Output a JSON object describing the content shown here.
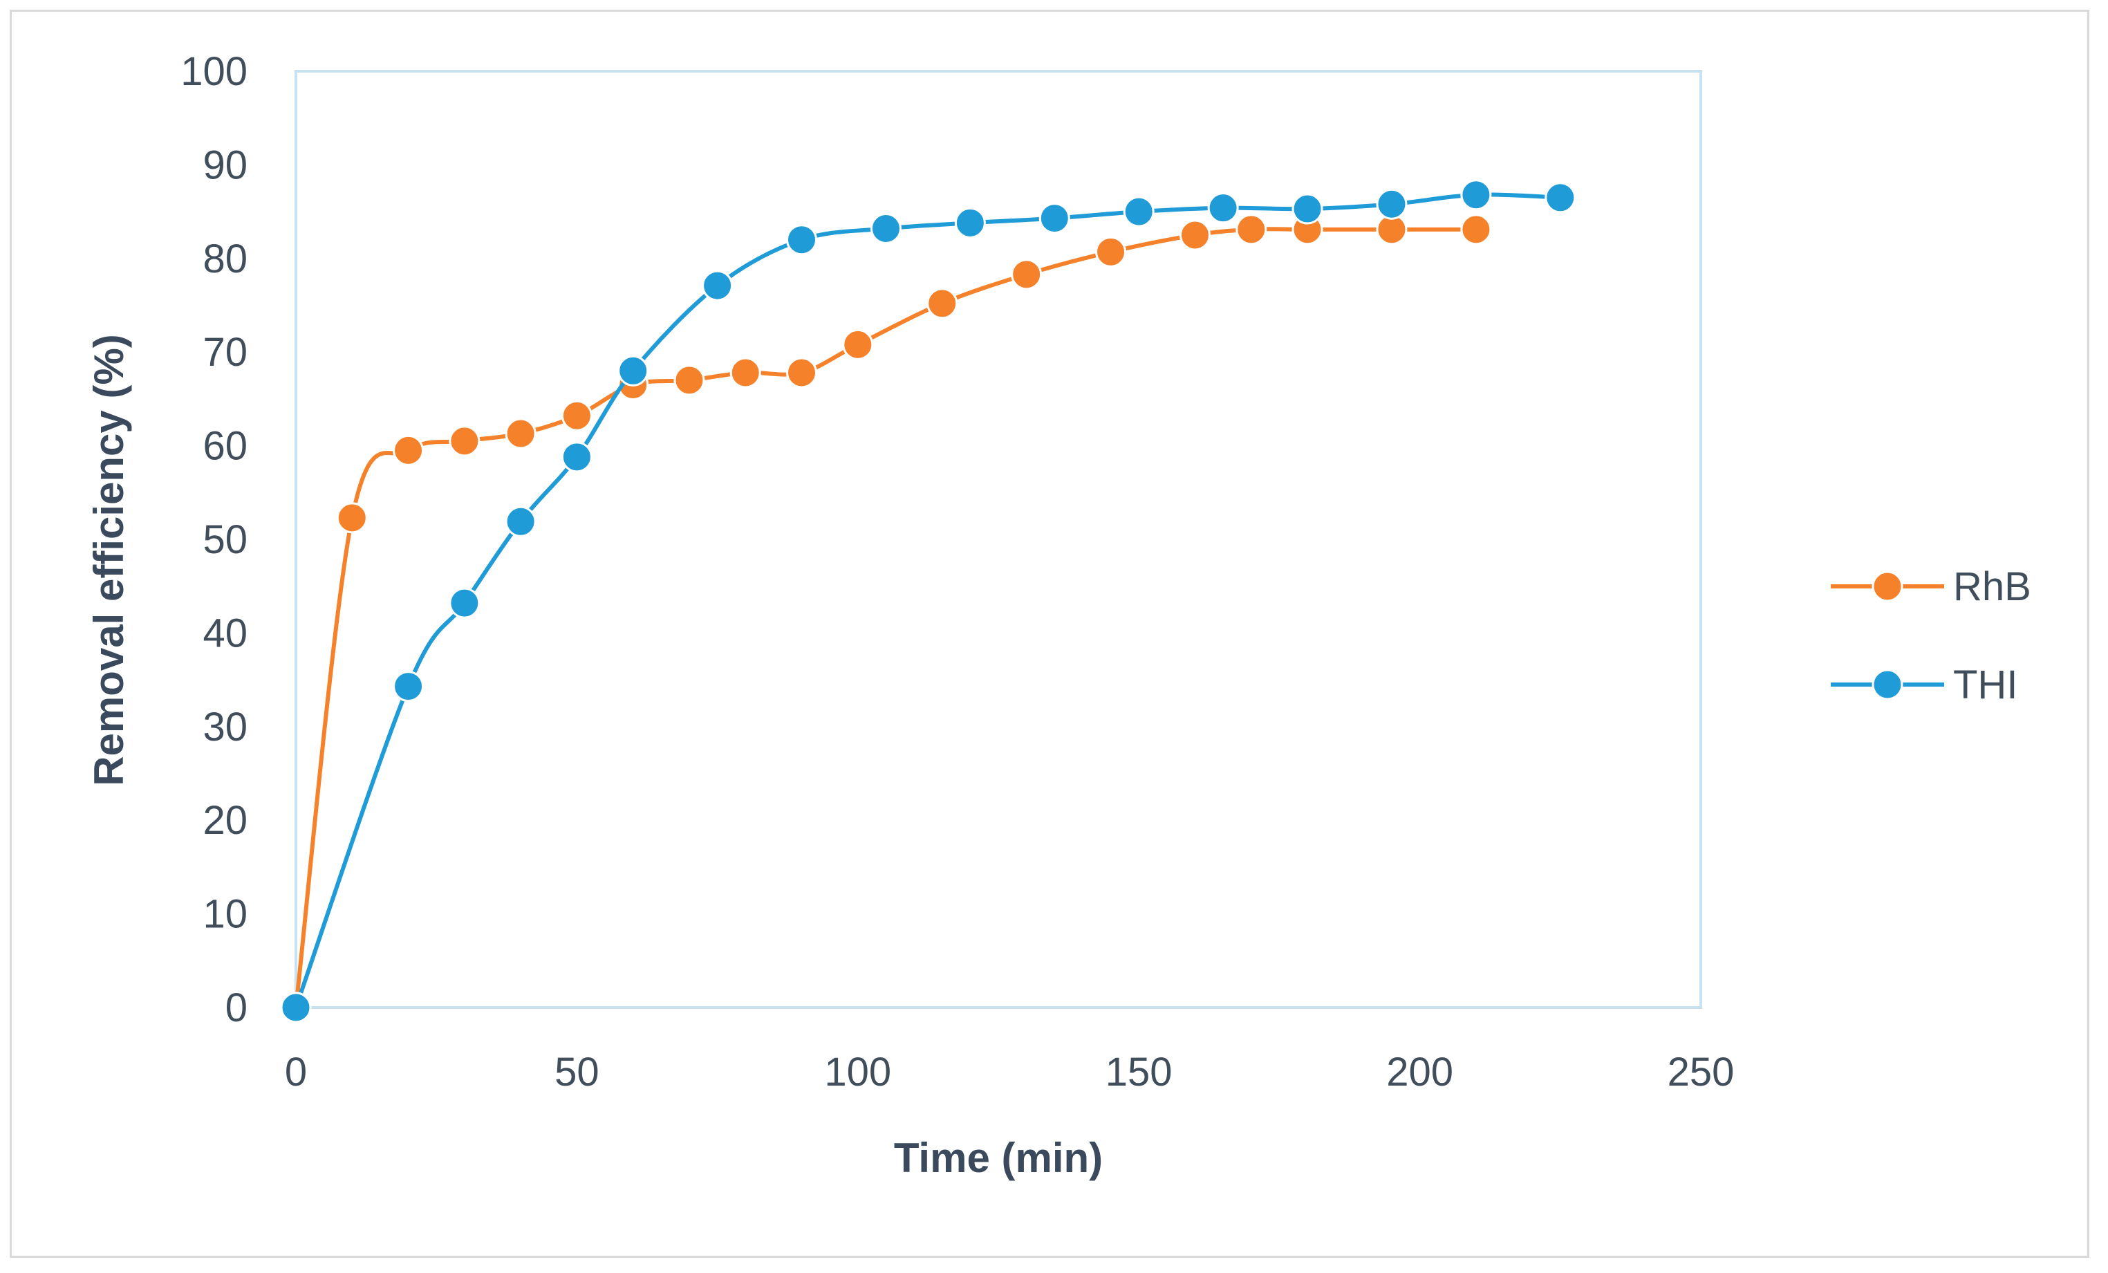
{
  "chart_data": {
    "type": "line",
    "xlabel": "Time (min)",
    "ylabel": "Removal efficiency (%)",
    "xlim": [
      0,
      250
    ],
    "ylim": [
      0,
      100
    ],
    "xticks": [
      0,
      50,
      100,
      150,
      200,
      250
    ],
    "yticks": [
      0,
      10,
      20,
      30,
      40,
      50,
      60,
      70,
      80,
      90,
      100
    ],
    "grid": false,
    "smooth": true,
    "legend_position": "right",
    "series": [
      {
        "name": "RhB",
        "color": "#f5822a",
        "x": [
          0,
          10,
          20,
          30,
          40,
          50,
          60,
          70,
          80,
          90,
          100,
          115,
          130,
          145,
          160,
          170,
          180,
          195,
          210
        ],
        "y": [
          0,
          52.3,
          59.5,
          60.5,
          61.3,
          63.2,
          66.5,
          67.0,
          67.8,
          67.8,
          70.8,
          75.2,
          78.3,
          80.7,
          82.5,
          83.1,
          83.1,
          83.1,
          83.1
        ]
      },
      {
        "name": "THI",
        "color": "#1f9bd7",
        "x": [
          0,
          20,
          30,
          40,
          50,
          60,
          75,
          90,
          105,
          120,
          135,
          150,
          165,
          180,
          195,
          210,
          225
        ],
        "y": [
          0,
          34.3,
          43.2,
          51.9,
          58.8,
          68.0,
          77.1,
          82.0,
          83.2,
          83.8,
          84.3,
          85.0,
          85.4,
          85.3,
          85.8,
          86.8,
          86.5
        ]
      }
    ]
  }
}
